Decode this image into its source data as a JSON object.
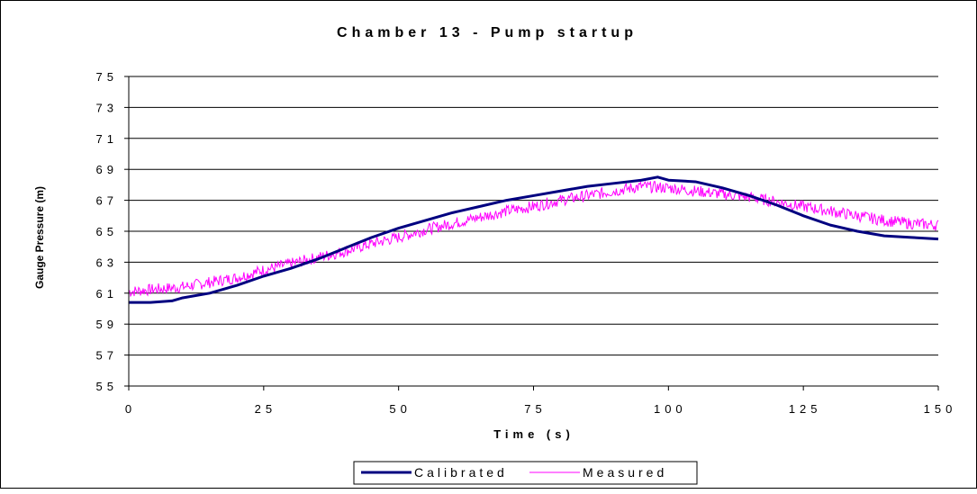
{
  "chart_data": {
    "type": "line",
    "title": "Chamber 13 - Pump startup",
    "xlabel": "Time (s)",
    "ylabel": "Gauge Pressure (m)",
    "xlim": [
      0,
      150
    ],
    "ylim": [
      55,
      75
    ],
    "xticks": [
      0,
      25,
      50,
      75,
      100,
      125,
      150
    ],
    "yticks": [
      55,
      57,
      59,
      61,
      63,
      65,
      67,
      69,
      71,
      73,
      75
    ],
    "xtick_labels": [
      "0",
      "25",
      "50",
      "75",
      "100",
      "125",
      "150"
    ],
    "ytick_labels": [
      "55",
      "57",
      "59",
      "61",
      "63",
      "65",
      "67",
      "69",
      "71",
      "73",
      "75"
    ],
    "grid": "horizontal",
    "legend_position": "bottom",
    "series": [
      {
        "name": "Calibrated",
        "color": "#000080",
        "x": [
          0,
          4,
          8,
          10,
          15,
          20,
          25,
          30,
          35,
          40,
          45,
          50,
          55,
          60,
          65,
          70,
          75,
          80,
          85,
          90,
          95,
          98,
          100,
          105,
          110,
          115,
          120,
          125,
          130,
          135,
          140,
          145,
          150
        ],
        "y": [
          60.4,
          60.4,
          60.5,
          60.7,
          61.0,
          61.5,
          62.1,
          62.6,
          63.2,
          63.9,
          64.6,
          65.2,
          65.7,
          66.2,
          66.6,
          67.0,
          67.3,
          67.6,
          67.9,
          68.1,
          68.3,
          68.5,
          68.3,
          68.2,
          67.8,
          67.3,
          66.7,
          66.0,
          65.4,
          65.0,
          64.7,
          64.6,
          64.5
        ]
      },
      {
        "name": "Measured",
        "color": "#FF00FF",
        "x": [
          0,
          10,
          20,
          25,
          30,
          35,
          40,
          45,
          50,
          55,
          60,
          65,
          70,
          75,
          80,
          85,
          90,
          95,
          100,
          105,
          110,
          115,
          120,
          125,
          130,
          135,
          140,
          145,
          150
        ],
        "y": [
          61.1,
          61.4,
          62.0,
          62.5,
          62.9,
          63.3,
          63.7,
          64.2,
          64.6,
          65.1,
          65.5,
          65.9,
          66.3,
          66.6,
          67.0,
          67.3,
          67.6,
          67.9,
          67.8,
          67.6,
          67.4,
          67.2,
          66.9,
          66.6,
          66.3,
          66.0,
          65.7,
          65.5,
          65.4
        ]
      }
    ]
  }
}
